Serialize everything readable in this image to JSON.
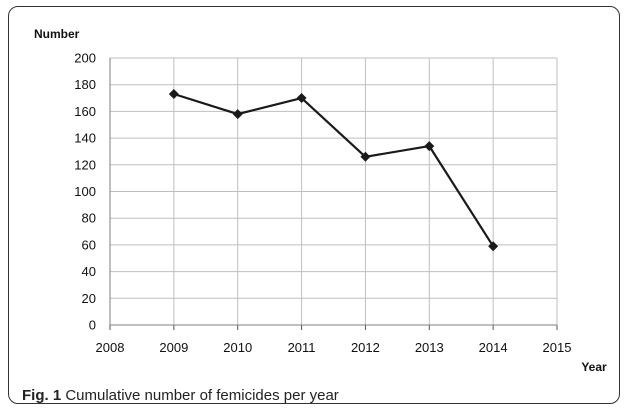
{
  "chart_data": {
    "type": "line",
    "title": "",
    "xlabel": "Year",
    "ylabel": "Number",
    "x": [
      2009,
      2010,
      2011,
      2012,
      2013,
      2014
    ],
    "values": [
      173,
      158,
      170,
      126,
      134,
      59
    ],
    "xlim": [
      2008,
      2015
    ],
    "ylim": [
      0,
      200
    ],
    "xticks": [
      "2008",
      "2009",
      "2010",
      "2011",
      "2012",
      "2013",
      "2014",
      "2015"
    ],
    "yticks": [
      "0",
      "20",
      "40",
      "60",
      "80",
      "100",
      "120",
      "140",
      "160",
      "180",
      "200"
    ],
    "grid": true,
    "legend": "none",
    "line_color": "#1a1a1a",
    "grid_color": "#bfbfbf"
  },
  "caption": {
    "label": "Fig. 1",
    "text": " Cumulative number of femicides per year"
  }
}
